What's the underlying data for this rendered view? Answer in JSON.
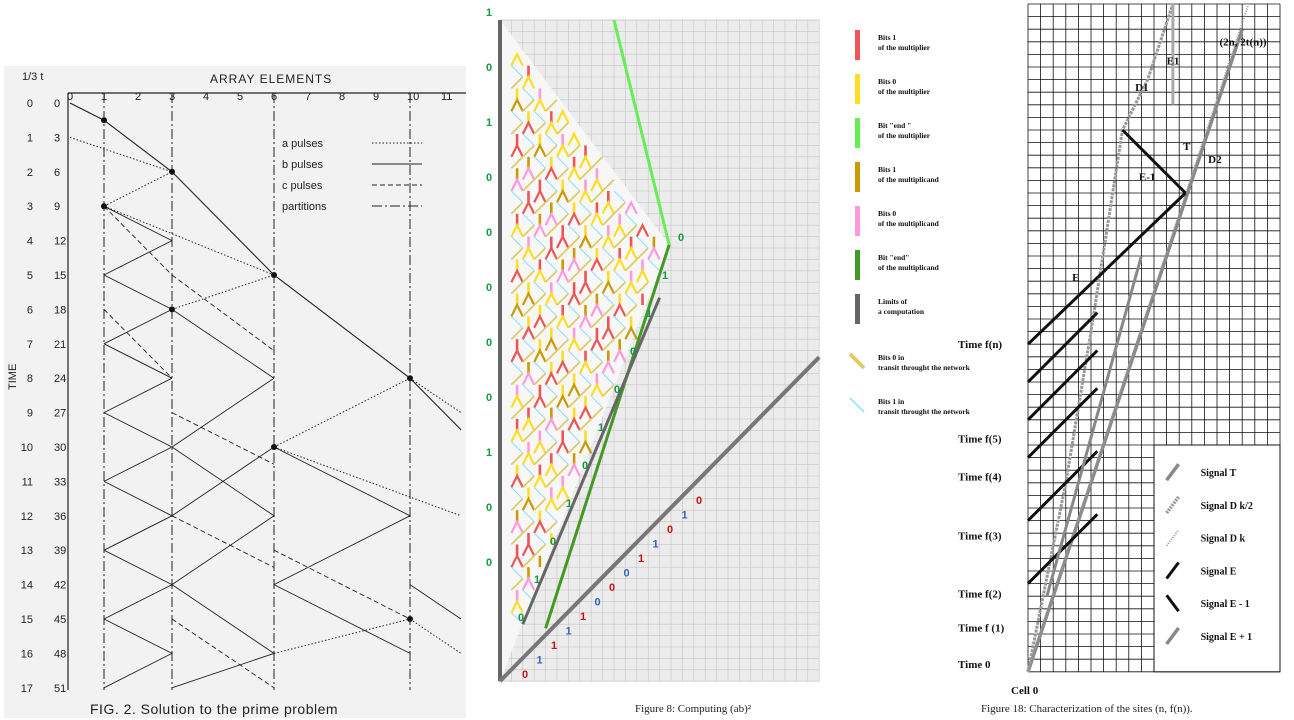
{
  "panel1": {
    "caption": "FIG. 2.   Solution to the prime problem",
    "top_title": "ARRAY ELEMENTS",
    "y_title": "TIME",
    "corner_label": "1/3  t",
    "x_ticks": [
      "0",
      "1",
      "2",
      "3",
      "4",
      "5",
      "6",
      "7",
      "8",
      "9",
      "10",
      "11"
    ],
    "time_labels": [
      [
        "0",
        "0"
      ],
      [
        "1",
        "3"
      ],
      [
        "2",
        "6"
      ],
      [
        "3",
        "9"
      ],
      [
        "4",
        "12"
      ],
      [
        "5",
        "15"
      ],
      [
        "6",
        "18"
      ],
      [
        "7",
        "21"
      ],
      [
        "8",
        "24"
      ],
      [
        "9",
        "27"
      ],
      [
        "10",
        "30"
      ],
      [
        "11",
        "33"
      ],
      [
        "12",
        "36"
      ],
      [
        "13",
        "39"
      ],
      [
        "14",
        "42"
      ],
      [
        "15",
        "45"
      ],
      [
        "16",
        "48"
      ],
      [
        "17",
        "51"
      ]
    ],
    "legend": [
      {
        "label": "a  pulses",
        "style": "dotted"
      },
      {
        "label": "b  pulses",
        "style": "solid"
      },
      {
        "label": "c  pulses",
        "style": "dashed"
      },
      {
        "label": "partitions",
        "style": "dashdot"
      }
    ]
  },
  "panel2": {
    "caption": "Figure 8: Computing (ab)²",
    "left_bits": [
      "1",
      "0",
      "1",
      "0",
      "0",
      "0",
      "0",
      "0",
      "1",
      "0",
      "0"
    ],
    "diag_bits": [
      {
        "t": "0",
        "c": "red"
      },
      {
        "t": "1",
        "c": "blue"
      },
      {
        "t": "1",
        "c": "red"
      },
      {
        "t": "1",
        "c": "blue"
      },
      {
        "t": "1",
        "c": "red"
      },
      {
        "t": "0",
        "c": "blue"
      },
      {
        "t": "0",
        "c": "red"
      },
      {
        "t": "0",
        "c": "blue"
      },
      {
        "t": "1",
        "c": "red"
      },
      {
        "t": "1",
        "c": "blue"
      },
      {
        "t": "0",
        "c": "red"
      },
      {
        "t": "1",
        "c": "blue"
      },
      {
        "t": "0",
        "c": "red"
      }
    ],
    "inner_bits": [
      "0",
      "1",
      "0",
      "1",
      "0",
      "1",
      "0",
      "0",
      "1",
      "1",
      "0"
    ],
    "legend": [
      {
        "label": "Bits  1  of the multiplier",
        "color": "#ee5555",
        "kind": "bar"
      },
      {
        "label": "Bits  0  of the multiplier",
        "color": "#ffdd22",
        "kind": "bar"
      },
      {
        "label": "Bit  \"end \"  of the multiplier",
        "color": "#66ee55",
        "kind": "bar"
      },
      {
        "label": "Bits  1  of the multiplicand",
        "color": "#cc9900",
        "kind": "bar"
      },
      {
        "label": "Bits  0  of the multiplicand",
        "color": "#ff99dd",
        "kind": "bar"
      },
      {
        "label": "Bit  \"end\"  of the multiplicand",
        "color": "#449922",
        "kind": "bar"
      },
      {
        "label": "Limits of a computation",
        "color": "#666666",
        "kind": "bar"
      },
      {
        "label": "Bits  0  in transit throught the network",
        "color": "#ddcc66",
        "kind": "slant"
      },
      {
        "label": "Bits  1  in transit throught the network",
        "color": "#88ddff",
        "kind": "thin"
      }
    ]
  },
  "panel3": {
    "caption": "Figure 18: Characterization of the sites (n, f(n)).",
    "time_labels": [
      "Time f(n)",
      "Time f(5)",
      "Time f(4)",
      "Time f(3)",
      "Time f(2)",
      "Time f (1)",
      "Time 0"
    ],
    "cell_label": "Cell 0",
    "point_label": "(2n, 2t(n))",
    "signal_labels": [
      "D1",
      "E1",
      "T",
      "D2",
      "E-1",
      "E"
    ],
    "legend": [
      {
        "label": "Signal T",
        "style": "gray"
      },
      {
        "label": "Signal D k/2",
        "style": "hatched"
      },
      {
        "label": "Signal D k",
        "style": "dotted"
      },
      {
        "label": "Signal E",
        "style": "black"
      },
      {
        "label": "Signal E - 1",
        "style": "black-down"
      },
      {
        "label": "Signal E + 1",
        "style": "gray-thick"
      }
    ]
  }
}
